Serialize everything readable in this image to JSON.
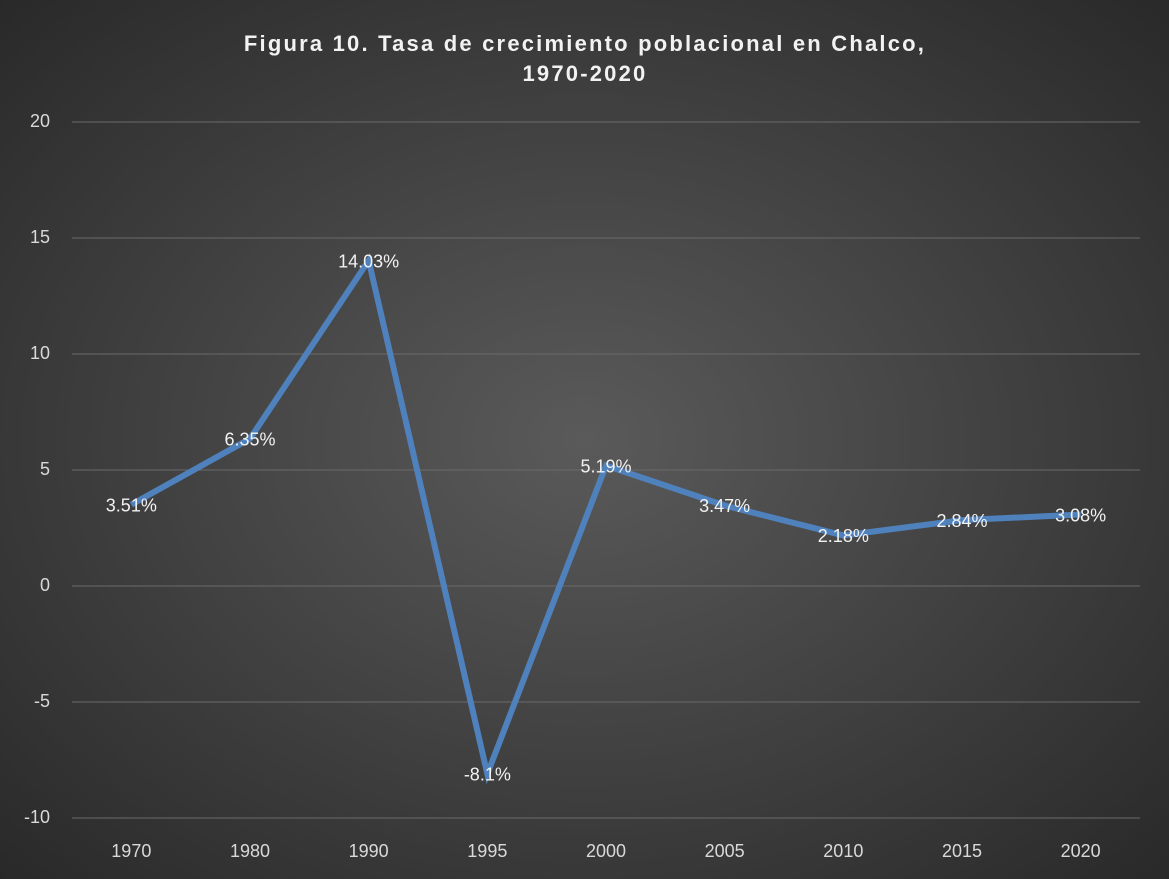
{
  "chart_data": {
    "type": "line",
    "title": [
      "Figura 10. Tasa de crecimiento poblacional en Chalco,",
      "1970-2020"
    ],
    "categories": [
      "1970",
      "1980",
      "1990",
      "1995",
      "2000",
      "2005",
      "2010",
      "2015",
      "2020"
    ],
    "series": [
      {
        "color": "#4f81bd",
        "values": [
          3.51,
          6.35,
          14.03,
          -8.1,
          5.19,
          3.47,
          2.18,
          2.84,
          3.08
        ],
        "value_labels": [
          "3.51%",
          "6.35%",
          "14.03%",
          "-8.1%",
          "5.19%",
          "3.47%",
          "2.18%",
          "2.84%",
          "3.08%"
        ]
      }
    ],
    "ylim": [
      -10,
      20
    ],
    "yticks": [
      -10,
      -5,
      0,
      5,
      10,
      15,
      20
    ],
    "grid": true
  }
}
